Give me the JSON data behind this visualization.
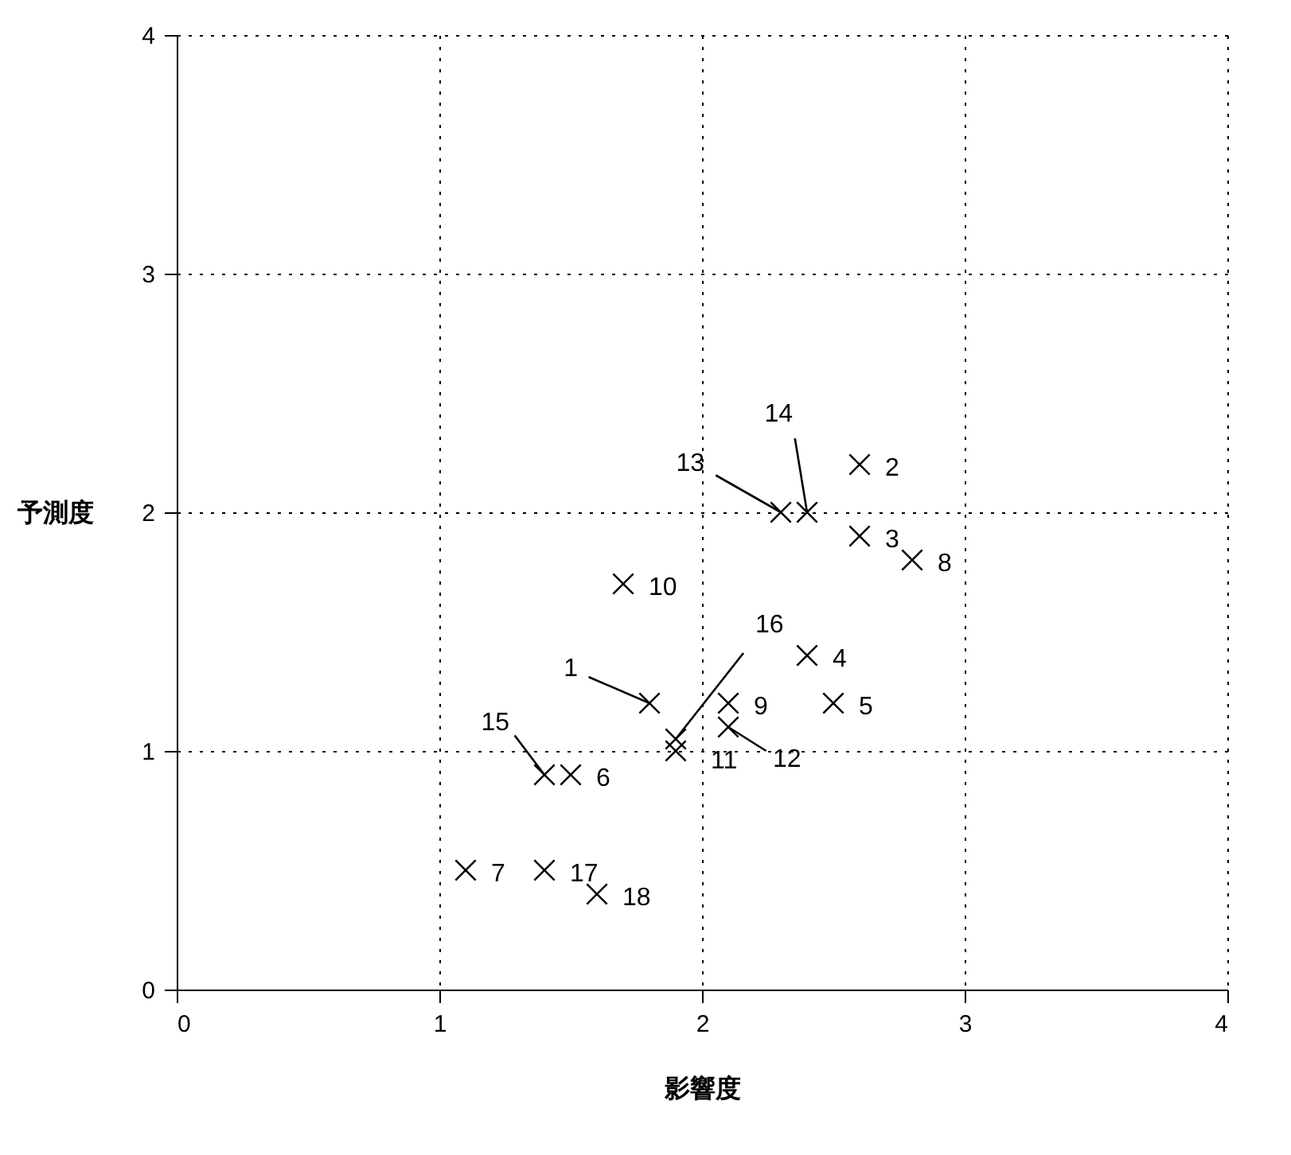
{
  "chart_data": {
    "type": "scatter",
    "xlabel": "影響度",
    "ylabel": "予測度",
    "x": [
      1.8,
      2.6,
      2.6,
      2.4,
      2.5,
      1.5,
      1.1,
      2.8,
      2.1,
      1.7,
      1.9,
      2.1,
      2.3,
      2.4,
      1.4,
      1.9,
      1.4,
      1.6
    ],
    "series": [
      {
        "color": "#000000",
        "values": [
          1.2,
          2.2,
          1.9,
          1.4,
          1.2,
          0.9,
          0.5,
          1.8,
          1.2,
          1.7,
          1.0,
          1.1,
          2.0,
          2.0,
          0.9,
          1.05,
          0.5,
          0.4
        ]
      }
    ],
    "annotations": [
      {
        "text": "1",
        "x": 1.8,
        "y": 1.2
      },
      {
        "text": "2",
        "x": 2.6,
        "y": 2.2
      },
      {
        "text": "3",
        "x": 2.6,
        "y": 1.9
      },
      {
        "text": "4",
        "x": 2.4,
        "y": 1.4
      },
      {
        "text": "5",
        "x": 2.5,
        "y": 1.2
      },
      {
        "text": "6",
        "x": 1.5,
        "y": 0.9
      },
      {
        "text": "7",
        "x": 1.1,
        "y": 0.5
      },
      {
        "text": "8",
        "x": 2.8,
        "y": 1.8
      },
      {
        "text": "9",
        "x": 2.1,
        "y": 1.2
      },
      {
        "text": "10",
        "x": 1.7,
        "y": 1.7
      },
      {
        "text": "11",
        "x": 1.9,
        "y": 1.0
      },
      {
        "text": "12",
        "x": 2.1,
        "y": 1.1
      },
      {
        "text": "13",
        "x": 2.3,
        "y": 2.0
      },
      {
        "text": "14",
        "x": 2.4,
        "y": 2.0
      },
      {
        "text": "15",
        "x": 1.4,
        "y": 0.9
      },
      {
        "text": "16",
        "x": 1.9,
        "y": 1.05
      },
      {
        "text": "17",
        "x": 1.4,
        "y": 0.5
      },
      {
        "text": "18",
        "x": 1.6,
        "y": 0.4
      }
    ],
    "xlim": [
      0,
      4
    ],
    "ylim": [
      0,
      4
    ],
    "xticks": [
      0,
      1,
      2,
      3,
      4
    ],
    "yticks": [
      0,
      1,
      2,
      3,
      4
    ],
    "grid": true,
    "marker": "cross"
  }
}
